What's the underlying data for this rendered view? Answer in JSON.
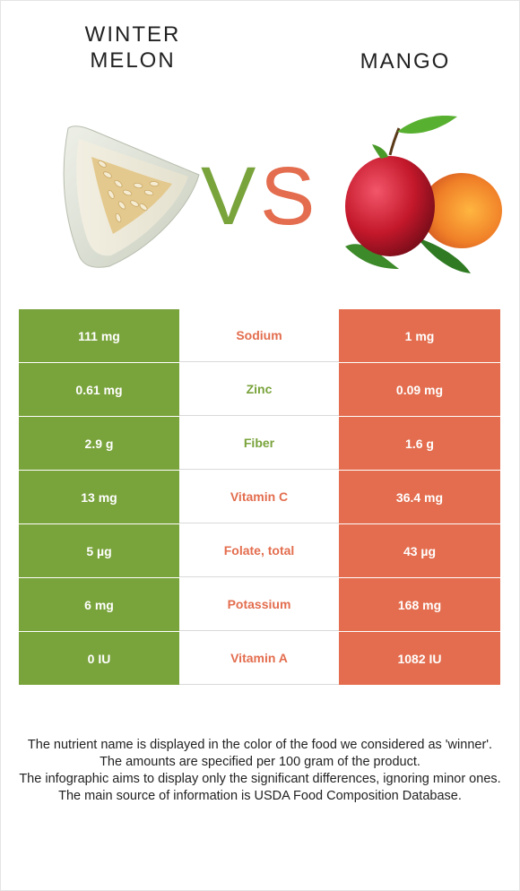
{
  "foods": {
    "left": {
      "name": "WINTER MELON",
      "name_line1": "WINTER",
      "name_line2": "MELON",
      "color": "#79a33b",
      "image_icon": "winter-melon-slice"
    },
    "right": {
      "name": "MANGO",
      "color": "#e36d4e",
      "image_icon": "mango-fruits"
    }
  },
  "vs": {
    "v": "V",
    "s": "S"
  },
  "colors": {
    "winner_left": "#79a33b",
    "winner_right": "#e36d4e",
    "background": "#ffffff"
  },
  "nutrients": [
    {
      "name": "Sodium",
      "left": "111 mg",
      "right": "1 mg",
      "winner": "right"
    },
    {
      "name": "Zinc",
      "left": "0.61 mg",
      "right": "0.09 mg",
      "winner": "left"
    },
    {
      "name": "Fiber",
      "left": "2.9 g",
      "right": "1.6 g",
      "winner": "left"
    },
    {
      "name": "Vitamin C",
      "left": "13 mg",
      "right": "36.4 mg",
      "winner": "right"
    },
    {
      "name": "Folate, total",
      "left": "5 µg",
      "right": "43 µg",
      "winner": "right"
    },
    {
      "name": "Potassium",
      "left": "6 mg",
      "right": "168 mg",
      "winner": "right"
    },
    {
      "name": "Vitamin A",
      "left": "0 IU",
      "right": "1082 IU",
      "winner": "right"
    }
  ],
  "footnotes": [
    "The nutrient name is displayed in the color of the food we considered as 'winner'.",
    "The amounts are specified per 100 gram of the product.",
    "The infographic aims to display only the significant differences, ignoring minor ones.",
    "The main source of information is USDA Food Composition Database."
  ]
}
